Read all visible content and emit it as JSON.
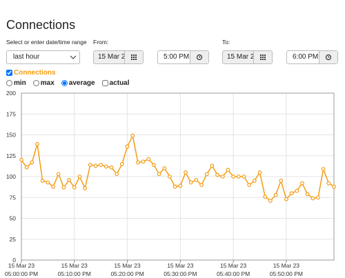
{
  "ui": {
    "title": "Connections",
    "range_label": "Select or enter date/time range",
    "range_value": "last hour",
    "from_label": "From:",
    "from_date": "15 Mar 2",
    "from_time": "5:00 PM",
    "to_label": "To:",
    "to_date": "15 Mar 2",
    "to_time": "6:00 PM",
    "series_toggle": "Connections",
    "options": [
      "min",
      "max",
      "average",
      "actual"
    ]
  },
  "chart_data": {
    "type": "line",
    "x": [
      0,
      1,
      2,
      3,
      4,
      5,
      6,
      7,
      8,
      9,
      10,
      11,
      12,
      13,
      14,
      15,
      16,
      17,
      18,
      19,
      20,
      21,
      22,
      23,
      24,
      25,
      26,
      27,
      28,
      29,
      30,
      31,
      32,
      33,
      34,
      35,
      36,
      37,
      38,
      39,
      40,
      41,
      42,
      43,
      44,
      45,
      46,
      47,
      48,
      49,
      50,
      51,
      52,
      53,
      54,
      55,
      56,
      57,
      58,
      59
    ],
    "series": [
      {
        "name": "Connections",
        "color": "#f39c12",
        "values": [
          120,
          111,
          117,
          139,
          95,
          93,
          88,
          103,
          87,
          96,
          87,
          100,
          86,
          114,
          113,
          114,
          112,
          111,
          103,
          115,
          136,
          149,
          117,
          118,
          121,
          114,
          103,
          110,
          100,
          88,
          89,
          105,
          93,
          96,
          90,
          103,
          113,
          102,
          100,
          108,
          100,
          100,
          100,
          90,
          95,
          105,
          76,
          71,
          78,
          95,
          73,
          80,
          83,
          92,
          79,
          74,
          75,
          109,
          92,
          88
        ]
      }
    ],
    "xlim": [
      0,
      59
    ],
    "xticks": [
      {
        "value": 0,
        "label": [
          "15 Mar 23",
          "05:00:00 PM"
        ]
      },
      {
        "value": 10,
        "label": [
          "15 Mar 23",
          "05:10:00 PM"
        ]
      },
      {
        "value": 20,
        "label": [
          "15 Mar 23",
          "05:20:00 PM"
        ]
      },
      {
        "value": 30,
        "label": [
          "15 Mar 23",
          "05:30:00 PM"
        ]
      },
      {
        "value": 40,
        "label": [
          "15 Mar 23",
          "05:40:00 PM"
        ]
      },
      {
        "value": 50,
        "label": [
          "15 Mar 23",
          "05:50:00 PM"
        ]
      }
    ],
    "ylim": [
      0,
      200
    ],
    "yticks": [
      0,
      25,
      50,
      75,
      100,
      125,
      150,
      175,
      200
    ],
    "grid": true
  }
}
